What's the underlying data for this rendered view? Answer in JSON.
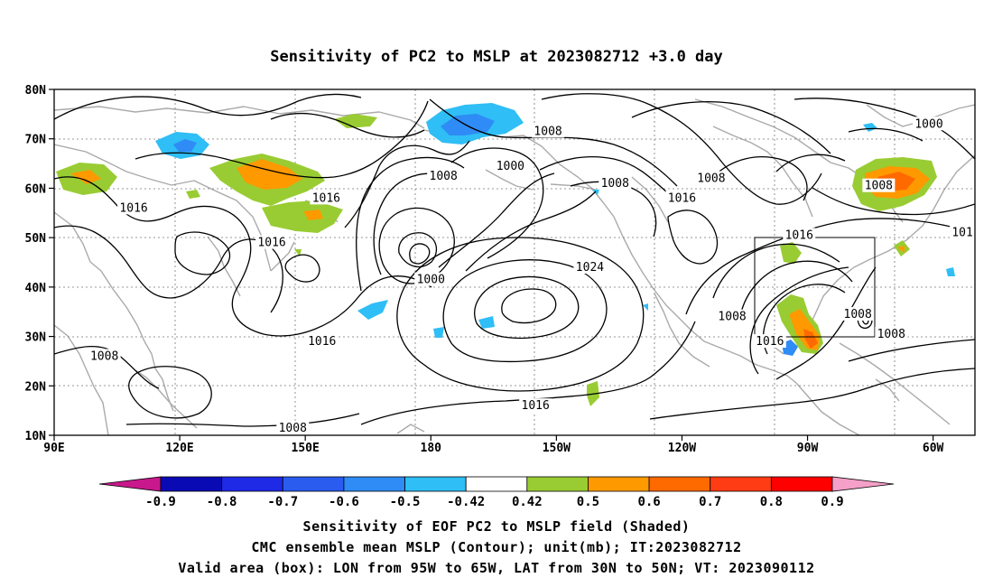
{
  "title": "Sensitivity of PC2 to MSLP at 2023082712 +3.0 day",
  "map": {
    "lon_min": 90,
    "lon_max": 310,
    "lat_min": 10,
    "lat_max": 80,
    "lat_ticks": [
      "80N",
      "70N",
      "60N",
      "50N",
      "40N",
      "30N",
      "20N",
      "10N"
    ],
    "lon_ticks": [
      "90E",
      "120E",
      "150E",
      "180",
      "150W",
      "120W",
      "90W",
      "60W"
    ],
    "grid": "dotted",
    "valid_box": {
      "lon_w": 265,
      "lon_e": 295,
      "lat_s": 30,
      "lat_n": 50
    }
  },
  "contour_labels": [
    {
      "text": "1008",
      "lon": 208,
      "lat": 71.5
    },
    {
      "text": "1000",
      "lon": 199,
      "lat": 64.5
    },
    {
      "text": "1008",
      "lon": 183,
      "lat": 62.5
    },
    {
      "text": "1008",
      "lon": 224,
      "lat": 61
    },
    {
      "text": "1008",
      "lon": 247,
      "lat": 62
    },
    {
      "text": "1016",
      "lon": 240,
      "lat": 58
    },
    {
      "text": "1016",
      "lon": 155,
      "lat": 58
    },
    {
      "text": "1016",
      "lon": 109,
      "lat": 56
    },
    {
      "text": "1016",
      "lon": 142,
      "lat": 49
    },
    {
      "text": "1000",
      "lon": 180,
      "lat": 41.5
    },
    {
      "text": "1024",
      "lon": 218,
      "lat": 44
    },
    {
      "text": "1008",
      "lon": 252,
      "lat": 34
    },
    {
      "text": "1016",
      "lon": 261,
      "lat": 29
    },
    {
      "text": "1016",
      "lon": 154,
      "lat": 29
    },
    {
      "text": "1008",
      "lon": 102,
      "lat": 26
    },
    {
      "text": "1016",
      "lon": 205,
      "lat": 16
    },
    {
      "text": "1008",
      "lon": 147,
      "lat": 11.5
    },
    {
      "text": "1016",
      "lon": 268,
      "lat": 50.5
    },
    {
      "text": "1000",
      "lon": 299,
      "lat": 73
    },
    {
      "text": "1008",
      "lon": 287,
      "lat": 60.5
    },
    {
      "text": "1008",
      "lon": 282,
      "lat": 34.5
    },
    {
      "text": "1008",
      "lon": 290,
      "lat": 30.5
    },
    {
      "text": "101",
      "lon": 307,
      "lat": 51
    }
  ],
  "colorbar": {
    "labels": [
      "-0.9",
      "-0.8",
      "-0.7",
      "-0.6",
      "-0.5",
      "-0.42",
      "0.42",
      "0.5",
      "0.6",
      "0.7",
      "0.8",
      "0.9"
    ],
    "colors": [
      "#0a0ab4",
      "#1e2ae6",
      "#2a5cf0",
      "#2f8bf5",
      "#2fbef5",
      "#ffffff",
      "#99cc33",
      "#ff9900",
      "#ff6a00",
      "#ff3c14",
      "#ff0000"
    ],
    "left_triangle_color": "#c8188c",
    "right_triangle_color": "#f5a0c8"
  },
  "caption": [
    "Sensitivity of EOF PC2 to MSLP field (Shaded)",
    "CMC ensemble mean MSLP (Contour); unit(mb); IT:2023082712",
    "Valid area (box): LON from 95W to 65W, LAT from 30N to 50N; VT: 2023090112"
  ],
  "style": {
    "coast_color": "#aaaaaa",
    "contour_color": "#000000",
    "negative_colors": [
      "#2fbef5",
      "#2f8bf5"
    ],
    "positive_colors": [
      "#99cc33",
      "#ff9900",
      "#ff6a00",
      "#ff0000"
    ]
  }
}
